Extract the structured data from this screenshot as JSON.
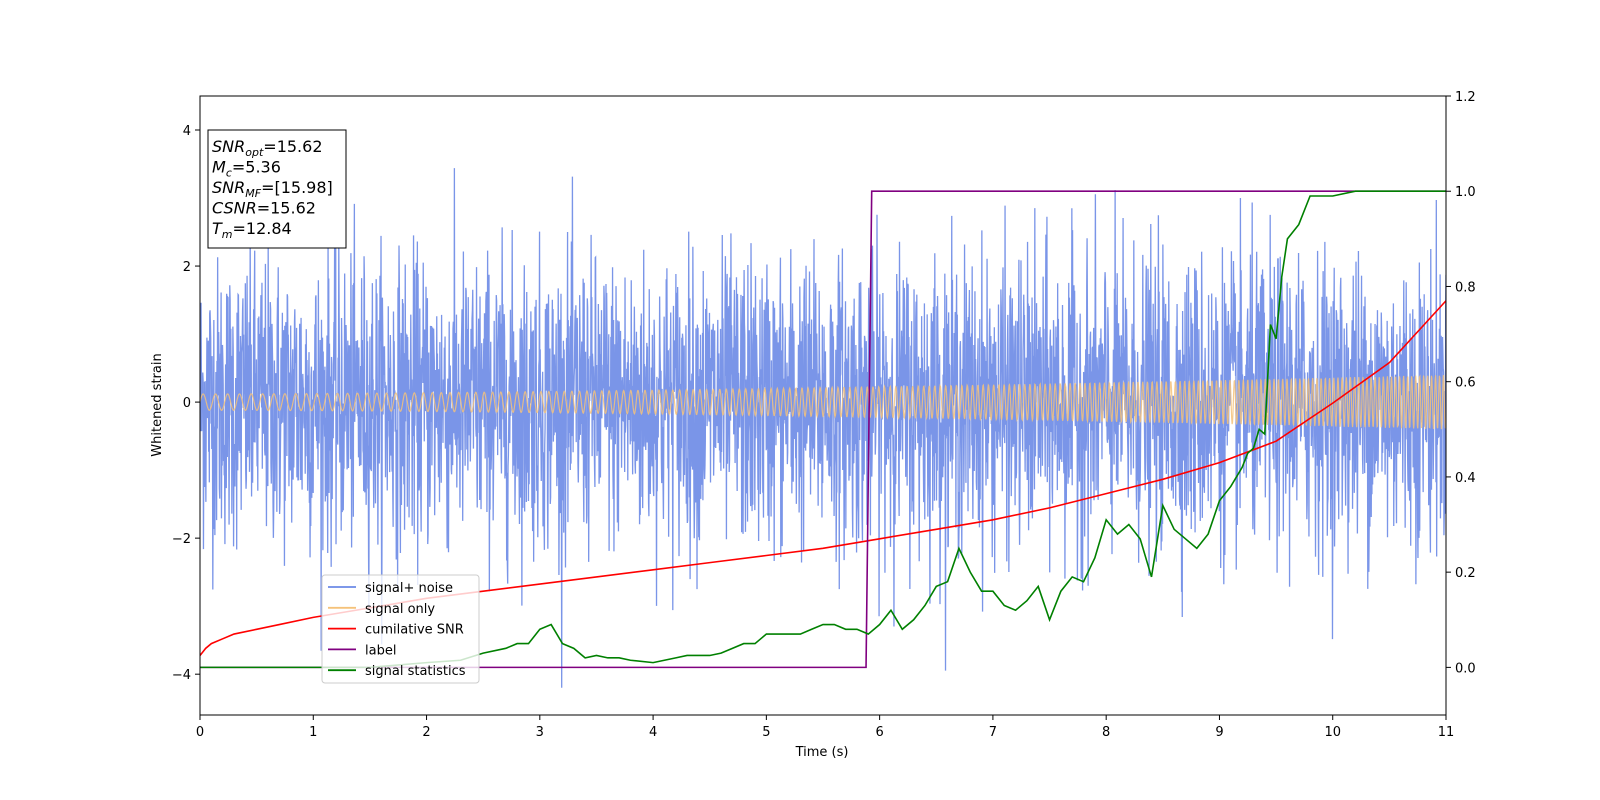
{
  "chart_data": {
    "type": "line",
    "xlabel": "Time (s)",
    "ylabel": "Whitened strain",
    "xlim": [
      0,
      11
    ],
    "ylim": [
      -4.6,
      4.5
    ],
    "y2lim": [
      -0.1,
      1.2
    ],
    "xticks": [
      "0",
      "1",
      "2",
      "3",
      "4",
      "5",
      "6",
      "7",
      "8",
      "9",
      "10",
      "11"
    ],
    "yticks": [
      "−4",
      "−2",
      "0",
      "2",
      "4"
    ],
    "y2ticks": [
      "0.0",
      "0.2",
      "0.4",
      "0.6",
      "0.8",
      "1.0",
      "1.2"
    ],
    "grid": false,
    "legend_position": "lower-left",
    "info_box": {
      "lines": [
        {
          "base": "SNR",
          "sub": "opt",
          "value": "=15.62"
        },
        {
          "base": "M",
          "sub": "c",
          "value": "=5.36"
        },
        {
          "base": "SNR",
          "sub": "MF",
          "value": "=[15.98]"
        },
        {
          "base": "CSNR",
          "sub": "",
          "value": "=15.62"
        },
        {
          "base": "T",
          "sub": "m",
          "value": "=12.84"
        }
      ]
    },
    "legend": [
      {
        "label": "signal+ noise",
        "color": "#6b8ae6"
      },
      {
        "label": "signal only",
        "color": "#f5c27a"
      },
      {
        "label": "cumilative SNR",
        "color": "#ff0000"
      },
      {
        "label": "label",
        "color": "#800080"
      },
      {
        "label": "signal statistics",
        "color": "#008000"
      }
    ],
    "series": [
      {
        "name": "signal+ noise",
        "axis": "left",
        "color": "#6b8ae6",
        "style": "dense noise, amplitude approx ±2.5 with peaks near ±4"
      },
      {
        "name": "signal only",
        "axis": "left",
        "color": "#f5c27a",
        "envelope": {
          "x": [
            0,
            11
          ],
          "amplitude": [
            0.12,
            0.4
          ]
        }
      },
      {
        "name": "cumilative SNR",
        "axis": "right",
        "color": "#ff0000",
        "x": [
          0,
          0.05,
          0.1,
          0.2,
          0.3,
          0.5,
          0.7,
          1.0,
          1.5,
          2.0,
          2.5,
          3.0,
          3.5,
          4.0,
          4.5,
          5.0,
          5.5,
          6.0,
          6.5,
          7.0,
          7.5,
          8.0,
          8.5,
          9.0,
          9.5,
          10.0,
          10.5,
          11.0
        ],
        "y": [
          0.025,
          0.04,
          0.05,
          0.06,
          0.07,
          0.08,
          0.09,
          0.105,
          0.125,
          0.145,
          0.16,
          0.175,
          0.19,
          0.205,
          0.22,
          0.235,
          0.25,
          0.27,
          0.29,
          0.31,
          0.335,
          0.365,
          0.395,
          0.43,
          0.475,
          0.555,
          0.64,
          0.77
        ]
      },
      {
        "name": "label",
        "axis": "right",
        "color": "#800080",
        "x": [
          0,
          5.88,
          5.93,
          11
        ],
        "y": [
          0.0,
          0.0,
          1.0,
          1.0
        ]
      },
      {
        "name": "signal statistics",
        "axis": "right",
        "color": "#008000",
        "x": [
          0,
          1.5,
          2.0,
          2.3,
          2.5,
          2.7,
          2.8,
          2.9,
          3.0,
          3.1,
          3.2,
          3.3,
          3.4,
          3.5,
          3.6,
          3.7,
          3.8,
          4.0,
          4.1,
          4.2,
          4.3,
          4.4,
          4.5,
          4.6,
          4.7,
          4.8,
          4.9,
          5.0,
          5.1,
          5.2,
          5.3,
          5.4,
          5.5,
          5.6,
          5.7,
          5.8,
          5.9,
          6.0,
          6.1,
          6.2,
          6.3,
          6.4,
          6.5,
          6.6,
          6.7,
          6.8,
          6.9,
          7.0,
          7.1,
          7.2,
          7.3,
          7.4,
          7.5,
          7.6,
          7.7,
          7.8,
          7.9,
          8.0,
          8.1,
          8.2,
          8.3,
          8.4,
          8.5,
          8.6,
          8.7,
          8.8,
          8.9,
          9.0,
          9.1,
          9.2,
          9.25,
          9.3,
          9.35,
          9.4,
          9.45,
          9.5,
          9.55,
          9.6,
          9.7,
          9.8,
          9.9,
          10.0,
          10.2,
          10.4,
          10.6,
          11.0
        ],
        "y": [
          0.0,
          0.0,
          0.01,
          0.015,
          0.03,
          0.04,
          0.05,
          0.05,
          0.08,
          0.09,
          0.05,
          0.04,
          0.02,
          0.025,
          0.02,
          0.02,
          0.015,
          0.01,
          0.015,
          0.02,
          0.025,
          0.025,
          0.025,
          0.03,
          0.04,
          0.05,
          0.05,
          0.07,
          0.07,
          0.07,
          0.07,
          0.08,
          0.09,
          0.09,
          0.08,
          0.08,
          0.07,
          0.09,
          0.12,
          0.08,
          0.1,
          0.13,
          0.17,
          0.18,
          0.25,
          0.2,
          0.16,
          0.16,
          0.13,
          0.12,
          0.14,
          0.17,
          0.1,
          0.16,
          0.19,
          0.18,
          0.23,
          0.31,
          0.28,
          0.3,
          0.27,
          0.19,
          0.34,
          0.29,
          0.27,
          0.25,
          0.28,
          0.35,
          0.38,
          0.42,
          0.45,
          0.46,
          0.5,
          0.49,
          0.72,
          0.69,
          0.82,
          0.9,
          0.93,
          0.99,
          0.99,
          0.99,
          1.0,
          1.0,
          1.0,
          1.0
        ]
      }
    ]
  }
}
